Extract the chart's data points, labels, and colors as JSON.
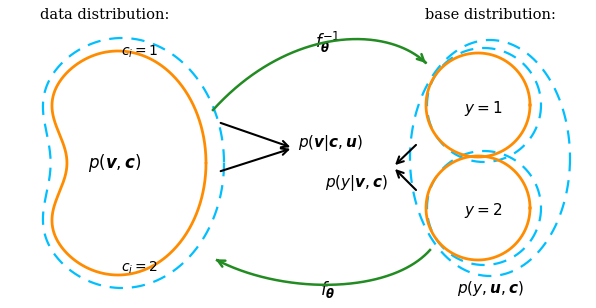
{
  "orange_color": "#FF8C00",
  "blue_color": "#00BFFF",
  "green_color": "#228B22",
  "black_color": "#000000",
  "bg_color": "#FFFFFF",
  "title_left": "data distribution:",
  "title_right": "base distribution:",
  "figsize": [
    5.96,
    3.08
  ],
  "dpi": 100
}
